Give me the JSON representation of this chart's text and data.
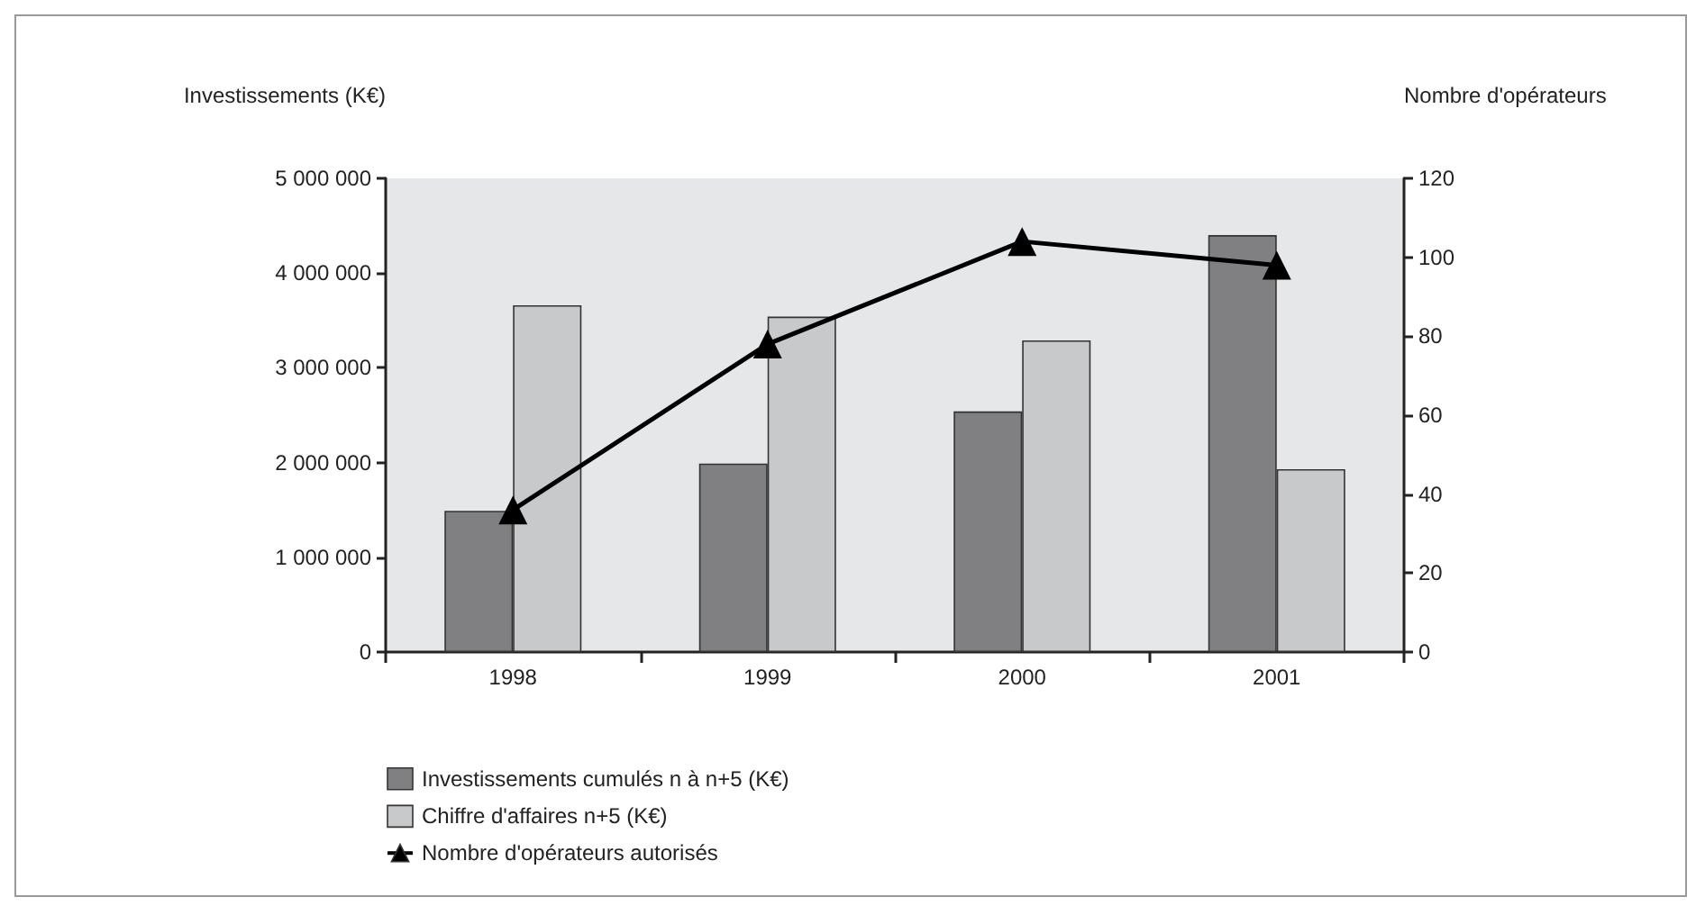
{
  "chart_data": {
    "type": "bar",
    "ylabel": "Investissements (K€)",
    "y2label": "Nombre d'opérateurs",
    "categories": [
      "1998",
      "1999",
      "2000",
      "2001"
    ],
    "series": [
      {
        "name": "Investissements cumulés n à n+5 (K€)",
        "color": "#808083",
        "values": [
          1490000,
          1990000,
          2540000,
          4400000
        ]
      },
      {
        "name": "Chiffre d'affaires n+5 (K€)",
        "color": "#c8c9cb",
        "values": [
          3660000,
          3540000,
          3290000,
          1930000
        ]
      },
      {
        "name": "Nombre d'opérateurs autorisés",
        "type": "line",
        "axis": "y2",
        "color": "#000000",
        "marker": "triangle",
        "values": [
          36,
          78,
          104,
          98
        ]
      }
    ],
    "ylim": [
      0,
      5000000
    ],
    "yticks": [
      0,
      {
        "value": 1000000,
        "label": "1 000 000"
      },
      {
        "value": 2000000,
        "label": "2 000 000"
      },
      {
        "value": 3000000,
        "label": "3 000 000"
      },
      {
        "value": 4000000,
        "label": "4 000 000"
      },
      {
        "value": 5000000,
        "label": "5 000 000"
      }
    ],
    "y2lim": [
      0,
      120
    ],
    "y2ticks": [
      0,
      20,
      40,
      60,
      80,
      100,
      120
    ],
    "grid": false,
    "legend": "bottom left"
  }
}
